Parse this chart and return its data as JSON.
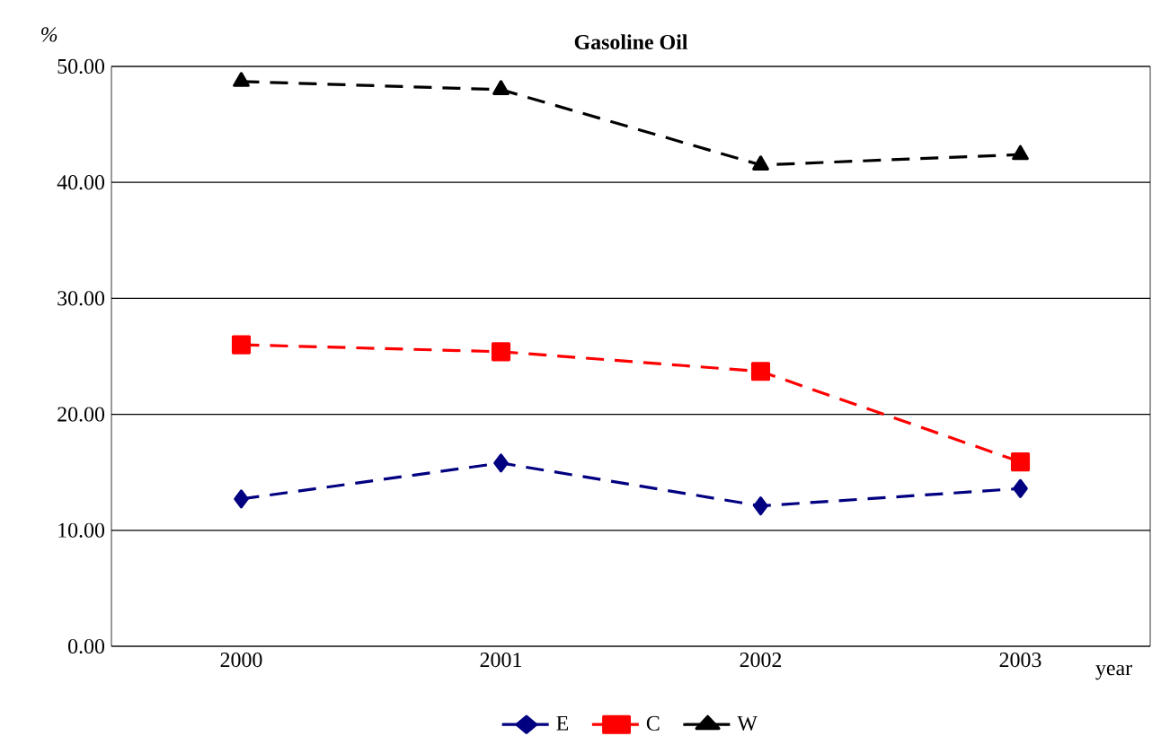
{
  "chart_data": {
    "type": "line",
    "title": "Gasoline Oil",
    "xlabel": "year",
    "ylabel": "%",
    "categories": [
      "2000",
      "2001",
      "2002",
      "2003"
    ],
    "series": [
      {
        "name": "E",
        "color": "#000080",
        "marker": "diamond",
        "values": [
          12.7,
          15.8,
          12.1,
          13.6
        ]
      },
      {
        "name": "C",
        "color": "#ff0000",
        "marker": "square",
        "values": [
          26.0,
          25.4,
          23.7,
          15.9
        ]
      },
      {
        "name": "W",
        "color": "#000000",
        "marker": "triangle",
        "values": [
          48.7,
          48.0,
          41.5,
          42.4
        ]
      }
    ],
    "ylim": [
      0,
      50
    ],
    "yticks": [
      {
        "value": 0,
        "label": "0.00"
      },
      {
        "value": 10,
        "label": "10.00"
      },
      {
        "value": 20,
        "label": "20.00"
      },
      {
        "value": 30,
        "label": "30.00"
      },
      {
        "value": 40,
        "label": "40.00"
      },
      {
        "value": 50,
        "label": "50.00"
      }
    ],
    "grid": "y",
    "legend": "bottom",
    "line_style": "dashed"
  }
}
